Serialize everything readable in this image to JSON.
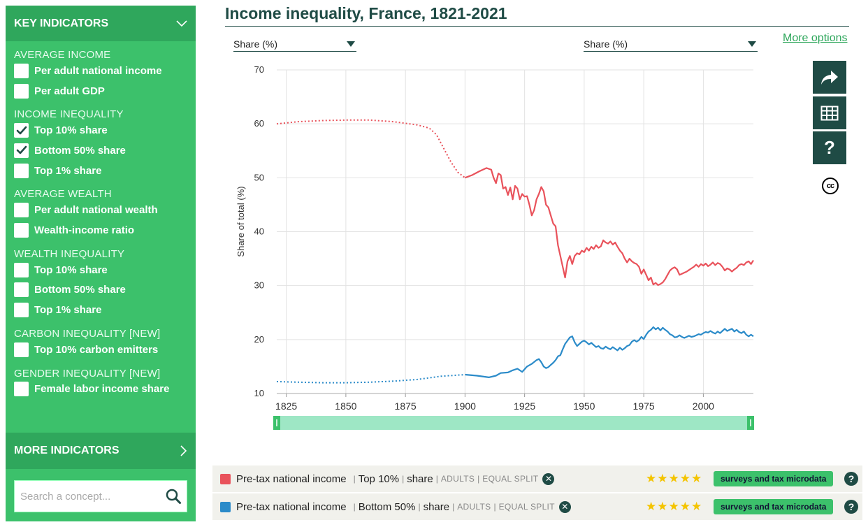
{
  "sidebar": {
    "header": "KEY INDICATORS",
    "sections": [
      {
        "title": "AVERAGE INCOME",
        "items": [
          {
            "label": "Per adult national income",
            "checked": false
          },
          {
            "label": "Per adult GDP",
            "checked": false
          }
        ]
      },
      {
        "title": "INCOME INEQUALITY",
        "items": [
          {
            "label": "Top 10% share",
            "checked": true
          },
          {
            "label": "Bottom 50% share",
            "checked": true
          },
          {
            "label": "Top 1% share",
            "checked": false
          }
        ]
      },
      {
        "title": "AVERAGE WEALTH",
        "items": [
          {
            "label": "Per adult national wealth",
            "checked": false
          },
          {
            "label": "Wealth-income ratio",
            "checked": false
          }
        ]
      },
      {
        "title": "WEALTH INEQUALITY",
        "items": [
          {
            "label": "Top 10% share",
            "checked": false
          },
          {
            "label": "Bottom 50% share",
            "checked": false
          },
          {
            "label": "Top 1% share",
            "checked": false
          }
        ]
      },
      {
        "title": "CARBON INEQUALITY [NEW]",
        "items": [
          {
            "label": "Top 10% carbon emitters",
            "checked": false
          }
        ]
      },
      {
        "title": "GENDER INEQUALITY [NEW]",
        "items": [
          {
            "label": "Female labor income share",
            "checked": false
          }
        ]
      }
    ],
    "more": "MORE INDICATORS",
    "search_placeholder": "Search a concept..."
  },
  "header": {
    "title": "Income inequality, France, 1821-2021",
    "left_selector": "Share (%)",
    "right_selector": "Share (%)",
    "more_options": "More options"
  },
  "side_buttons": [
    "share-icon",
    "table-icon",
    "help-icon"
  ],
  "license": "cc",
  "legend": [
    {
      "color": "#e9525b",
      "name": "Pre-tax national income",
      "group": "Top 10%",
      "measure": "share",
      "pop": "ADULTS",
      "split": "EQUAL SPLIT",
      "stars": "★★★★★",
      "source": "surveys and tax microdata"
    },
    {
      "color": "#2b8bc9",
      "name": "Pre-tax national income",
      "group": "Bottom 50%",
      "measure": "share",
      "pop": "ADULTS",
      "split": "EQUAL SPLIT",
      "stars": "★★★★★",
      "source": "surveys and tax microdata"
    }
  ],
  "chart_data": {
    "type": "line",
    "title": "Income inequality, France, 1821-2021",
    "ylabel": "Share of total (%)",
    "xlabel": "",
    "xlim": [
      1821,
      2021
    ],
    "ylim": [
      10,
      70
    ],
    "x_ticks": [
      1825,
      1850,
      1875,
      1900,
      1925,
      1950,
      1975,
      2000
    ],
    "y_ticks": [
      10,
      20,
      30,
      40,
      50,
      60,
      70
    ],
    "grid": true,
    "series": [
      {
        "name": "Top 10%",
        "color": "#e9525b",
        "estimated_until": 1900,
        "points": [
          [
            1821,
            60.0
          ],
          [
            1830,
            60.4
          ],
          [
            1840,
            60.6
          ],
          [
            1850,
            60.7
          ],
          [
            1860,
            60.7
          ],
          [
            1870,
            60.4
          ],
          [
            1880,
            59.8
          ],
          [
            1885,
            59.2
          ],
          [
            1888,
            58.0
          ],
          [
            1891,
            55.5
          ],
          [
            1894,
            53.0
          ],
          [
            1897,
            51.0
          ],
          [
            1900,
            50.0
          ],
          [
            1903,
            50.5
          ],
          [
            1906,
            51.2
          ],
          [
            1909,
            51.8
          ],
          [
            1911,
            51.5
          ],
          [
            1912,
            50.0
          ],
          [
            1913,
            49.0
          ],
          [
            1914,
            50.8
          ],
          [
            1915,
            50.5
          ],
          [
            1916,
            48.0
          ],
          [
            1917,
            48.3
          ],
          [
            1918,
            46.8
          ],
          [
            1919,
            48.2
          ],
          [
            1920,
            46.0
          ],
          [
            1921,
            48.5
          ],
          [
            1922,
            48.0
          ],
          [
            1923,
            46.0
          ],
          [
            1924,
            47.0
          ],
          [
            1925,
            46.5
          ],
          [
            1926,
            46.6
          ],
          [
            1927,
            45.0
          ],
          [
            1928,
            43.0
          ],
          [
            1929,
            44.0
          ],
          [
            1930,
            46.0
          ],
          [
            1931,
            47.0
          ],
          [
            1932,
            48.3
          ],
          [
            1933,
            47.5
          ],
          [
            1934,
            45.0
          ],
          [
            1935,
            44.5
          ],
          [
            1936,
            43.0
          ],
          [
            1937,
            41.5
          ],
          [
            1938,
            41.0
          ],
          [
            1939,
            37.5
          ],
          [
            1940,
            35.5
          ],
          [
            1941,
            33.5
          ],
          [
            1942,
            31.5
          ],
          [
            1943,
            34.5
          ],
          [
            1944,
            35.5
          ],
          [
            1945,
            34.0
          ],
          [
            1946,
            35.5
          ],
          [
            1947,
            36.0
          ],
          [
            1948,
            35.8
          ],
          [
            1949,
            36.5
          ],
          [
            1950,
            36.2
          ],
          [
            1951,
            37.0
          ],
          [
            1952,
            36.5
          ],
          [
            1953,
            37.2
          ],
          [
            1954,
            36.8
          ],
          [
            1955,
            37.5
          ],
          [
            1956,
            37.0
          ],
          [
            1957,
            37.3
          ],
          [
            1958,
            38.4
          ],
          [
            1959,
            38.0
          ],
          [
            1960,
            37.8
          ],
          [
            1961,
            38.2
          ],
          [
            1962,
            37.6
          ],
          [
            1963,
            38.0
          ],
          [
            1964,
            37.2
          ],
          [
            1965,
            36.5
          ],
          [
            1966,
            36.0
          ],
          [
            1967,
            35.0
          ],
          [
            1968,
            34.3
          ],
          [
            1969,
            35.0
          ],
          [
            1970,
            34.5
          ],
          [
            1971,
            34.2
          ],
          [
            1972,
            34.0
          ],
          [
            1973,
            33.5
          ],
          [
            1974,
            32.2
          ],
          [
            1975,
            33.0
          ],
          [
            1976,
            32.0
          ],
          [
            1977,
            31.0
          ],
          [
            1978,
            31.5
          ],
          [
            1979,
            30.2
          ],
          [
            1980,
            30.5
          ],
          [
            1981,
            30.1
          ],
          [
            1982,
            30.3
          ],
          [
            1983,
            30.6
          ],
          [
            1984,
            31.2
          ],
          [
            1985,
            32.0
          ],
          [
            1986,
            32.8
          ],
          [
            1987,
            33.2
          ],
          [
            1988,
            33.4
          ],
          [
            1989,
            33.0
          ],
          [
            1990,
            32.0
          ],
          [
            1991,
            32.2
          ],
          [
            1992,
            32.4
          ],
          [
            1993,
            32.6
          ],
          [
            1994,
            32.9
          ],
          [
            1995,
            33.2
          ],
          [
            1996,
            33.5
          ],
          [
            1997,
            33.9
          ],
          [
            1998,
            33.5
          ],
          [
            1999,
            34.0
          ],
          [
            2000,
            33.7
          ],
          [
            2001,
            34.1
          ],
          [
            2002,
            33.6
          ],
          [
            2003,
            33.9
          ],
          [
            2004,
            34.3
          ],
          [
            2005,
            33.8
          ],
          [
            2006,
            34.2
          ],
          [
            2007,
            34.0
          ],
          [
            2008,
            33.5
          ],
          [
            2009,
            32.8
          ],
          [
            2010,
            33.2
          ],
          [
            2011,
            33.0
          ],
          [
            2012,
            32.6
          ],
          [
            2013,
            33.0
          ],
          [
            2014,
            33.3
          ],
          [
            2015,
            33.8
          ],
          [
            2016,
            34.0
          ],
          [
            2017,
            33.8
          ],
          [
            2018,
            34.3
          ],
          [
            2019,
            34.5
          ],
          [
            2020,
            34.0
          ],
          [
            2021,
            34.7
          ]
        ]
      },
      {
        "name": "Bottom 50%",
        "color": "#2b8bc9",
        "estimated_until": 1900,
        "points": [
          [
            1821,
            12.2
          ],
          [
            1830,
            12.1
          ],
          [
            1840,
            12.0
          ],
          [
            1850,
            12.0
          ],
          [
            1860,
            12.1
          ],
          [
            1870,
            12.3
          ],
          [
            1880,
            12.6
          ],
          [
            1890,
            13.2
          ],
          [
            1900,
            13.5
          ],
          [
            1905,
            13.3
          ],
          [
            1910,
            13.0
          ],
          [
            1913,
            13.3
          ],
          [
            1915,
            13.8
          ],
          [
            1918,
            13.9
          ],
          [
            1920,
            14.3
          ],
          [
            1922,
            14.6
          ],
          [
            1924,
            14.0
          ],
          [
            1926,
            15.0
          ],
          [
            1928,
            15.5
          ],
          [
            1930,
            16.2
          ],
          [
            1931,
            16.4
          ],
          [
            1932,
            15.8
          ],
          [
            1933,
            15.0
          ],
          [
            1934,
            14.7
          ],
          [
            1935,
            14.9
          ],
          [
            1936,
            15.3
          ],
          [
            1937,
            15.7
          ],
          [
            1938,
            16.2
          ],
          [
            1939,
            16.9
          ],
          [
            1940,
            17.1
          ],
          [
            1941,
            18.2
          ],
          [
            1942,
            19.2
          ],
          [
            1943,
            19.8
          ],
          [
            1944,
            20.4
          ],
          [
            1945,
            20.6
          ],
          [
            1946,
            19.5
          ],
          [
            1947,
            18.8
          ],
          [
            1948,
            19.2
          ],
          [
            1949,
            19.6
          ],
          [
            1950,
            19.8
          ],
          [
            1951,
            19.5
          ],
          [
            1952,
            19.1
          ],
          [
            1953,
            19.4
          ],
          [
            1954,
            19.0
          ],
          [
            1955,
            18.6
          ],
          [
            1956,
            18.8
          ],
          [
            1957,
            18.4
          ],
          [
            1958,
            18.3
          ],
          [
            1959,
            18.7
          ],
          [
            1960,
            18.4
          ],
          [
            1961,
            18.2
          ],
          [
            1962,
            18.6
          ],
          [
            1963,
            18.3
          ],
          [
            1964,
            18.0
          ],
          [
            1965,
            18.5
          ],
          [
            1966,
            18.1
          ],
          [
            1967,
            18.4
          ],
          [
            1968,
            18.8
          ],
          [
            1969,
            19.0
          ],
          [
            1970,
            19.6
          ],
          [
            1971,
            19.9
          ],
          [
            1972,
            19.6
          ],
          [
            1973,
            19.9
          ],
          [
            1974,
            20.5
          ],
          [
            1975,
            20.1
          ],
          [
            1976,
            20.9
          ],
          [
            1977,
            21.5
          ],
          [
            1978,
            21.8
          ],
          [
            1979,
            22.3
          ],
          [
            1980,
            21.9
          ],
          [
            1981,
            22.2
          ],
          [
            1982,
            21.7
          ],
          [
            1983,
            22.2
          ],
          [
            1984,
            21.8
          ],
          [
            1985,
            21.5
          ],
          [
            1986,
            21.0
          ],
          [
            1987,
            20.8
          ],
          [
            1988,
            20.4
          ],
          [
            1989,
            20.5
          ],
          [
            1990,
            20.8
          ],
          [
            1991,
            20.5
          ],
          [
            1992,
            20.3
          ],
          [
            1993,
            20.5
          ],
          [
            1994,
            20.7
          ],
          [
            1995,
            20.5
          ],
          [
            1996,
            20.6
          ],
          [
            1997,
            20.8
          ],
          [
            1998,
            21.0
          ],
          [
            1999,
            20.9
          ],
          [
            2000,
            21.2
          ],
          [
            2001,
            21.4
          ],
          [
            2002,
            21.3
          ],
          [
            2003,
            21.6
          ],
          [
            2004,
            21.3
          ],
          [
            2005,
            21.1
          ],
          [
            2006,
            21.5
          ],
          [
            2007,
            21.2
          ],
          [
            2008,
            21.6
          ],
          [
            2009,
            22.0
          ],
          [
            2010,
            21.6
          ],
          [
            2011,
            21.8
          ],
          [
            2012,
            22.0
          ],
          [
            2013,
            21.5
          ],
          [
            2014,
            21.8
          ],
          [
            2015,
            21.4
          ],
          [
            2016,
            21.2
          ],
          [
            2017,
            21.5
          ],
          [
            2018,
            20.9
          ],
          [
            2019,
            20.6
          ],
          [
            2020,
            20.9
          ],
          [
            2021,
            20.6
          ]
        ]
      }
    ]
  }
}
